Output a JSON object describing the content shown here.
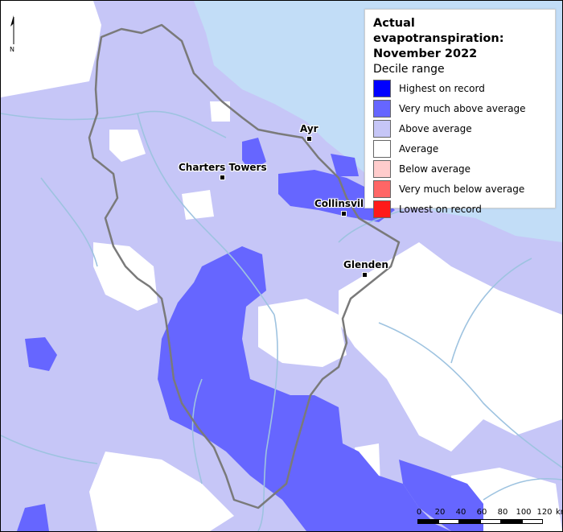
{
  "legend": {
    "title_line1": "Actual evapotranspiration:",
    "title_line2": "November 2022",
    "subtitle": "Decile range",
    "items": [
      {
        "label": "Highest on record",
        "color": "#0000ff"
      },
      {
        "label": "Very much above average",
        "color": "#6666ff"
      },
      {
        "label": "Above average",
        "color": "#c6c6f7"
      },
      {
        "label": "Average",
        "color": "#ffffff"
      },
      {
        "label": "Below average",
        "color": "#ffcccc"
      },
      {
        "label": "Very much below average",
        "color": "#ff6666"
      },
      {
        "label": "Lowest on record",
        "color": "#ff1a1a"
      }
    ]
  },
  "towns": [
    {
      "name": "Ayr"
    },
    {
      "name": "Charters Towers"
    },
    {
      "name": "Collinsvil"
    },
    {
      "name": "Glenden"
    }
  ],
  "north_arrow": {
    "label": "N"
  },
  "scale": {
    "ticks": [
      "0",
      "20",
      "40",
      "60",
      "80",
      "100",
      "120"
    ],
    "unit": "km"
  },
  "colors": {
    "sea": "#c2ddf7",
    "river": "#9ec3e0",
    "boundary": "#7a7a7a"
  }
}
